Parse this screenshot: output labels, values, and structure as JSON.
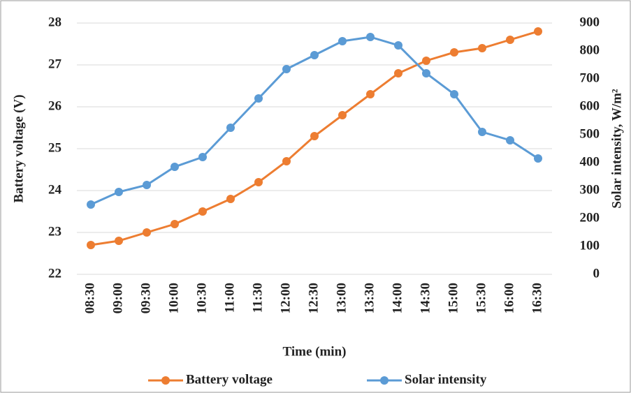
{
  "chart_data": {
    "type": "line",
    "x_label": "Time (min)",
    "y_label": "Battery voltage (V)",
    "y2_label": "Solar intensity, W/m²",
    "categories": [
      "08:30",
      "09:00",
      "09:30",
      "10:00",
      "10:30",
      "11:00",
      "11:30",
      "12:00",
      "12:30",
      "13:00",
      "13:30",
      "14:00",
      "14:30",
      "15:00",
      "15:30",
      "16:00",
      "16:30"
    ],
    "series": [
      {
        "name": "Battery voltage",
        "color": "#ed7d31",
        "values": [
          22.7,
          22.8,
          23.0,
          23.2,
          23.5,
          23.8,
          24.2,
          24.7,
          25.3,
          25.8,
          26.3,
          26.8,
          27.1,
          27.3,
          27.4,
          27.6,
          27.8
        ]
      },
      {
        "name": "Solar intensity",
        "color": "#5b9bd5",
        "axis": "y2",
        "values": [
          250,
          295,
          320,
          385,
          420,
          525,
          630,
          735,
          785,
          835,
          850,
          820,
          720,
          645,
          510,
          480,
          415
        ]
      }
    ],
    "ylim": [
      22,
      28
    ],
    "yticks": [
      22,
      23,
      24,
      25,
      26,
      27,
      28
    ],
    "y2lim": [
      0,
      900
    ],
    "y2ticks": [
      0,
      100,
      200,
      300,
      400,
      500,
      600,
      700,
      800,
      900
    ],
    "grid": true,
    "legend": "bottom"
  }
}
